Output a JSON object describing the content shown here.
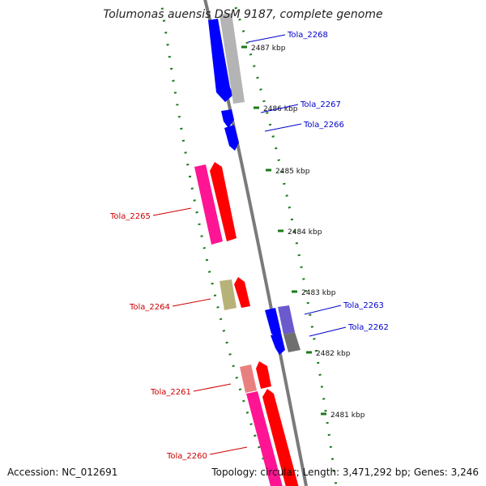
{
  "title": "Tolumonas auensis DSM 9187, complete genome",
  "footer": {
    "accession": "Accession: NC_012691",
    "summary": "Topology: circular; Length: 3,471,292 bp; Genes: 3,246"
  },
  "colors": {
    "background": "#ffffff",
    "backbone": "#7a7a7a",
    "tick": "#1a7a1a",
    "forward_cds": "#ff0000",
    "forward_label": "#cc0000",
    "reverse_cds": "#0000ff",
    "reverse_label": "#0000cc",
    "pseudo_or_other": "#a0a0a0",
    "rna_gene": "#ff1493"
  },
  "ticks": [
    {
      "label": "2487 kbp"
    },
    {
      "label": "2486 kbp"
    },
    {
      "label": "2485 kbp"
    },
    {
      "label": "2484 kbp"
    },
    {
      "label": "2483 kbp"
    },
    {
      "label": "2482 kbp"
    },
    {
      "label": "2481 kbp"
    }
  ],
  "genes": [
    {
      "label": "Tola_2268",
      "strand": "reverse"
    },
    {
      "label": "Tola_2267",
      "strand": "reverse"
    },
    {
      "label": "Tola_2266",
      "strand": "reverse"
    },
    {
      "label": "Tola_2265",
      "strand": "forward"
    },
    {
      "label": "Tola_2264",
      "strand": "forward"
    },
    {
      "label": "Tola_2263",
      "strand": "reverse"
    },
    {
      "label": "Tola_2262",
      "strand": "reverse"
    },
    {
      "label": "Tola_2261",
      "strand": "forward"
    },
    {
      "label": "Tola_2260",
      "strand": "forward"
    }
  ]
}
